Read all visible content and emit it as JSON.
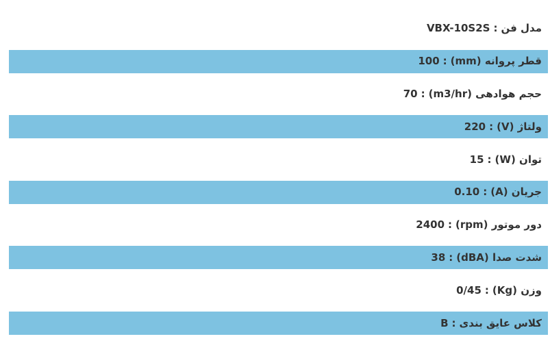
{
  "page": {
    "background": "#ffffff",
    "row_highlight_color": "#7ec2e1",
    "text_color": "#333333"
  },
  "spec_table": {
    "separator": ":",
    "rows": [
      {
        "label": "مدل فن",
        "value": "VBX-10S2S",
        "highlighted": false
      },
      {
        "label": "قطر پروانه (mm)",
        "value": "100",
        "highlighted": true
      },
      {
        "label": "حجم هوادهی (m3/hr)",
        "value": "70",
        "highlighted": false
      },
      {
        "label": "ولتاژ (V)",
        "value": "220",
        "highlighted": true
      },
      {
        "label": "توان (W)",
        "value": "15",
        "highlighted": false
      },
      {
        "label": "جریان (A)",
        "value": "0.10",
        "highlighted": true
      },
      {
        "label": "دور موتور (rpm)",
        "value": "2400",
        "highlighted": false
      },
      {
        "label": "شدت صدا (dBA)",
        "value": "38",
        "highlighted": true
      },
      {
        "label": "وزن (Kg)",
        "value": "0/45",
        "highlighted": false
      },
      {
        "label": "کلاس عایق بندی",
        "value": "B",
        "highlighted": true
      }
    ]
  }
}
